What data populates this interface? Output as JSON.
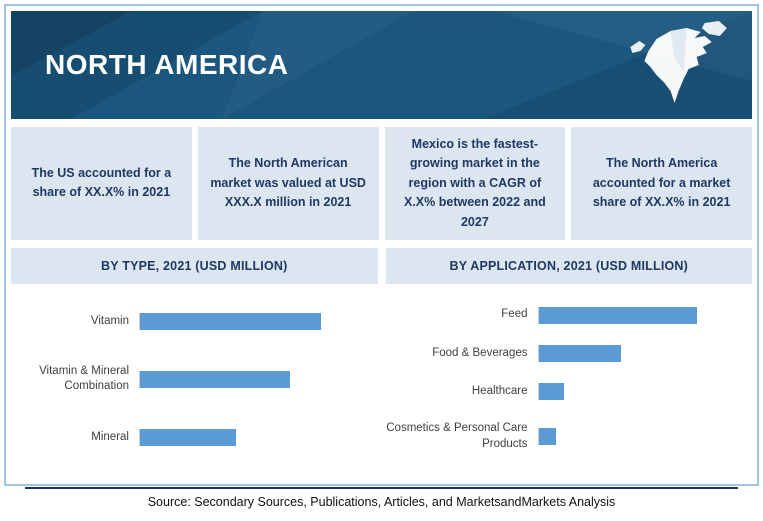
{
  "header": {
    "title": "NORTH AMERICA"
  },
  "highlight_cards": [
    {
      "text": "The US accounted for a share of XX.X% in 2021"
    },
    {
      "text": "The North American market was valued at USD XXX.X million in 2021"
    },
    {
      "text": "Mexico is the fastest-growing market in the region with a CAGR of X.X% between 2022 and 2027"
    },
    {
      "text": "The North America accounted for a market share of XX.X% in 2021"
    }
  ],
  "chart_data": [
    {
      "type": "bar",
      "orientation": "horizontal",
      "title": "BY TYPE, 2021 (USD MILLION)",
      "categories": [
        "Vitamin",
        "Vitamin & Mineral Combination",
        "Mineral"
      ],
      "values": [
        100,
        83,
        53
      ],
      "xlim": [
        0,
        128
      ],
      "bar_color": "#5B9BD5",
      "note": "No numeric data labels shown; values are relative bar lengths"
    },
    {
      "type": "bar",
      "orientation": "horizontal",
      "title": "BY APPLICATION, 2021 (USD MILLION)",
      "categories": [
        "Feed",
        "Food & Beverages",
        "Healthcare",
        "Cosmetics & Personal Care Products"
      ],
      "values": [
        100,
        52,
        16,
        11
      ],
      "xlim": [
        0,
        131
      ],
      "bar_color": "#5B9BD5",
      "note": "No numeric data labels shown; values are relative bar lengths"
    }
  ],
  "footer": {
    "source_text": "Source: Secondary Sources, Publications, Articles, and MarketsandMarkets Analysis"
  },
  "colors": {
    "banner": "#1A567E",
    "bar": "#5B9BD5",
    "card_bg": "#DCE6F1",
    "card_text": "#1F3864",
    "border": "#9DC3E6"
  }
}
